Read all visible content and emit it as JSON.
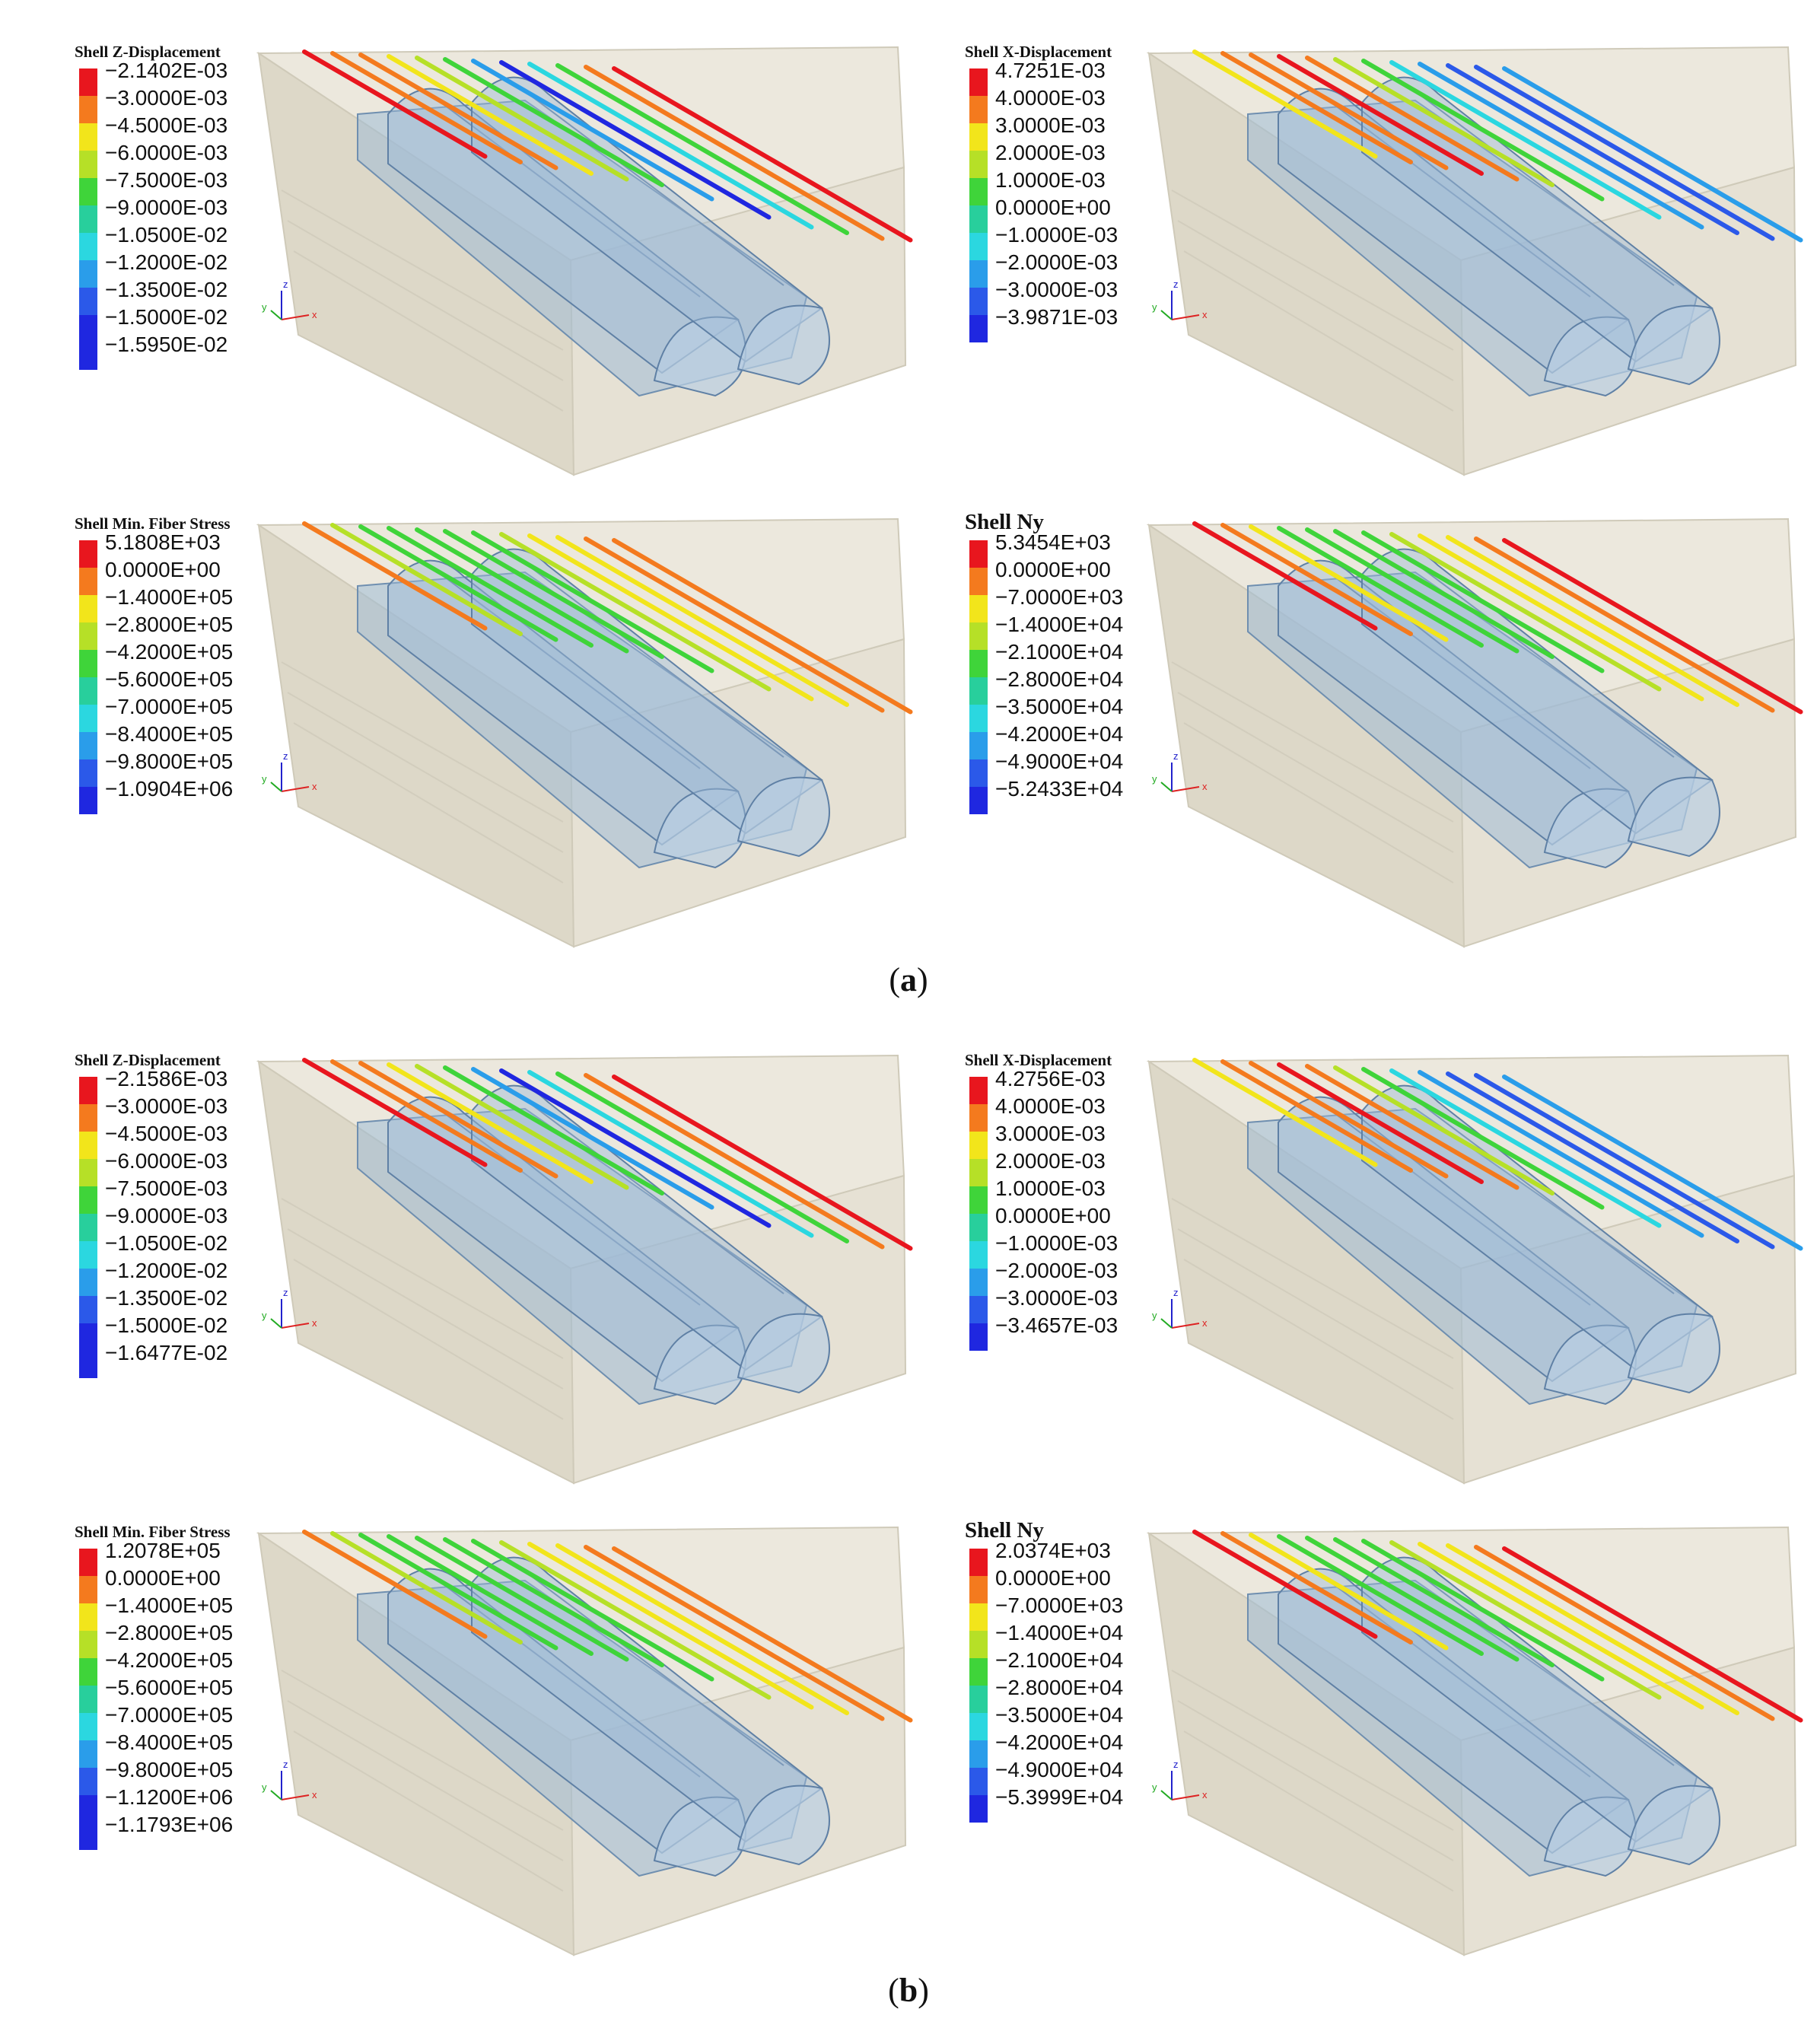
{
  "captions": {
    "a": "a",
    "b": "b"
  },
  "axis_labels": {
    "x": "x",
    "y": "y",
    "z": "z"
  },
  "colors": {
    "red": "#e8161e",
    "orange": "#f47a1e",
    "yellow": "#f2e51b",
    "yellowgreen": "#b6e027",
    "green": "#3fd43a",
    "teal": "#28cf9c",
    "cyan": "#2bd7e0",
    "lightblue": "#2a9dea",
    "blue": "#2b59e9",
    "deepblue": "#1f27e0",
    "soil": "#e6e1d4",
    "tunnel": "#9ebbd6"
  },
  "panels": [
    {
      "id": "a1",
      "title": "Shell Z-Displacement",
      "title_size": "small",
      "labels": [
        "−2.1402E-03",
        "−3.0000E-03",
        "−4.5000E-03",
        "−6.0000E-03",
        "−7.5000E-03",
        "−9.0000E-03",
        "−1.0500E-02",
        "−1.2000E-02",
        "−1.3500E-02",
        "−1.5000E-02",
        "−1.5950E-02"
      ]
    },
    {
      "id": "a2",
      "title": "Shell X-Displacement",
      "title_size": "small",
      "labels": [
        "4.7251E-03",
        "4.0000E-03",
        "3.0000E-03",
        "2.0000E-03",
        "1.0000E-03",
        "0.0000E+00",
        "−1.0000E-03",
        "−2.0000E-03",
        "−3.0000E-03",
        "−3.9871E-03"
      ]
    },
    {
      "id": "a3",
      "title": "Shell Min. Fiber Stress",
      "title_size": "small",
      "labels": [
        "5.1808E+03",
        "0.0000E+00",
        "−1.4000E+05",
        "−2.8000E+05",
        "−4.2000E+05",
        "−5.6000E+05",
        "−7.0000E+05",
        "−8.4000E+05",
        "−9.8000E+05",
        "−1.0904E+06"
      ]
    },
    {
      "id": "a4",
      "title": "Shell Ny",
      "title_size": "big",
      "labels": [
        "5.3454E+03",
        "0.0000E+00",
        "−7.0000E+03",
        "−1.4000E+04",
        "−2.1000E+04",
        "−2.8000E+04",
        "−3.5000E+04",
        "−4.2000E+04",
        "−4.9000E+04",
        "−5.2433E+04"
      ]
    },
    {
      "id": "b1",
      "title": "Shell Z-Displacement",
      "title_size": "small",
      "labels": [
        "−2.1586E-03",
        "−3.0000E-03",
        "−4.5000E-03",
        "−6.0000E-03",
        "−7.5000E-03",
        "−9.0000E-03",
        "−1.0500E-02",
        "−1.2000E-02",
        "−1.3500E-02",
        "−1.5000E-02",
        "−1.6477E-02"
      ]
    },
    {
      "id": "b2",
      "title": "Shell X-Displacement",
      "title_size": "small",
      "labels": [
        "4.2756E-03",
        "4.0000E-03",
        "3.0000E-03",
        "2.0000E-03",
        "1.0000E-03",
        "0.0000E+00",
        "−1.0000E-03",
        "−2.0000E-03",
        "−3.0000E-03",
        "−3.4657E-03"
      ]
    },
    {
      "id": "b3",
      "title": "Shell Min. Fiber Stress",
      "title_size": "small",
      "labels": [
        "1.2078E+05",
        "0.0000E+00",
        "−1.4000E+05",
        "−2.8000E+05",
        "−4.2000E+05",
        "−5.6000E+05",
        "−7.0000E+05",
        "−8.4000E+05",
        "−9.8000E+05",
        "−1.1200E+06",
        "−1.1793E+06"
      ]
    },
    {
      "id": "b4",
      "title": "Shell Ny",
      "title_size": "big",
      "labels": [
        "2.0374E+03",
        "0.0000E+00",
        "−7.0000E+03",
        "−1.4000E+04",
        "−2.1000E+04",
        "−2.8000E+04",
        "−3.5000E+04",
        "−4.2000E+04",
        "−4.9000E+04",
        "−5.3999E+04"
      ]
    }
  ]
}
